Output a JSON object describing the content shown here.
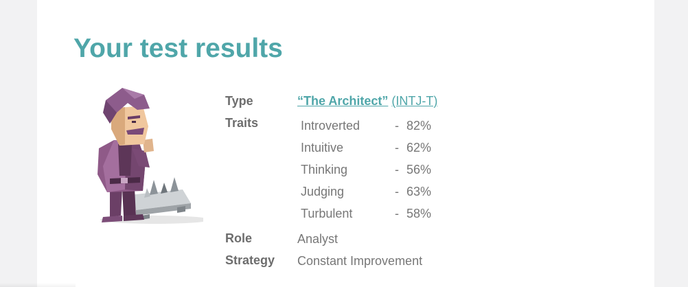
{
  "title": "Your test results",
  "labels": {
    "type": "Type",
    "traits": "Traits",
    "role": "Role",
    "strategy": "Strategy"
  },
  "type": {
    "name": "“The Architect”",
    "code": "(INTJ-T)"
  },
  "traits": [
    {
      "name": "Introverted",
      "dash": "-",
      "percent": "82%"
    },
    {
      "name": "Intuitive",
      "dash": "-",
      "percent": "62%"
    },
    {
      "name": "Thinking",
      "dash": "-",
      "percent": "56%"
    },
    {
      "name": "Judging",
      "dash": "-",
      "percent": "63%"
    },
    {
      "name": "Turbulent",
      "dash": "-",
      "percent": "58%"
    }
  ],
  "role": "Analyst",
  "strategy": "Constant Improvement",
  "colors": {
    "accent": "#4fa6a9",
    "label": "#6d6d6d",
    "value": "#777777",
    "background": "#f2f2f3",
    "card": "#ffffff"
  },
  "avatar_icon": "architect-character-icon"
}
